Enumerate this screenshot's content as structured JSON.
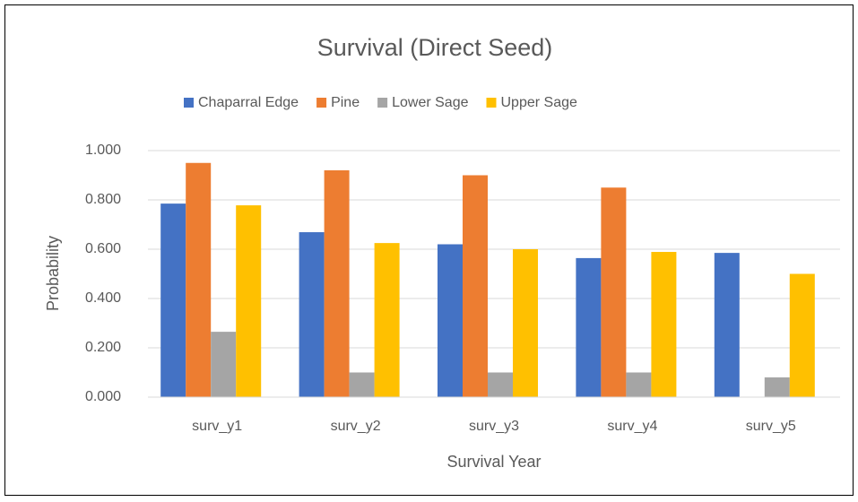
{
  "chart_data": {
    "type": "bar",
    "title": "Survival (Direct Seed)",
    "x_label": "Survival Year",
    "y_label": "Probability",
    "categories": [
      "surv_y1",
      "surv_y2",
      "surv_y3",
      "surv_y4",
      "surv_y5"
    ],
    "series": [
      {
        "name": "Chaparral Edge",
        "color": "#4472c4",
        "values": [
          0.785,
          0.669,
          0.62,
          0.564,
          0.585
        ]
      },
      {
        "name": "Pine",
        "color": "#ed7d31",
        "values": [
          0.95,
          0.92,
          0.9,
          0.85,
          0
        ]
      },
      {
        "name": "Lower Sage",
        "color": "#a5a5a5",
        "values": [
          0.265,
          0.1,
          0.1,
          0.1,
          0.08
        ]
      },
      {
        "name": "Upper Sage",
        "color": "#ffc000",
        "values": [
          0.778,
          0.625,
          0.6,
          0.589,
          0.5
        ]
      }
    ],
    "ylim": [
      0,
      1
    ],
    "yticks": [
      {
        "value": 0,
        "label": "0.000"
      },
      {
        "value": 0.2,
        "label": "0.200"
      },
      {
        "value": 0.4,
        "label": "0.400"
      },
      {
        "value": 0.6,
        "label": "0.600"
      },
      {
        "value": 0.8,
        "label": "0.800"
      },
      {
        "value": 1,
        "label": "1.000"
      }
    ],
    "grid": true,
    "legend": "top"
  }
}
